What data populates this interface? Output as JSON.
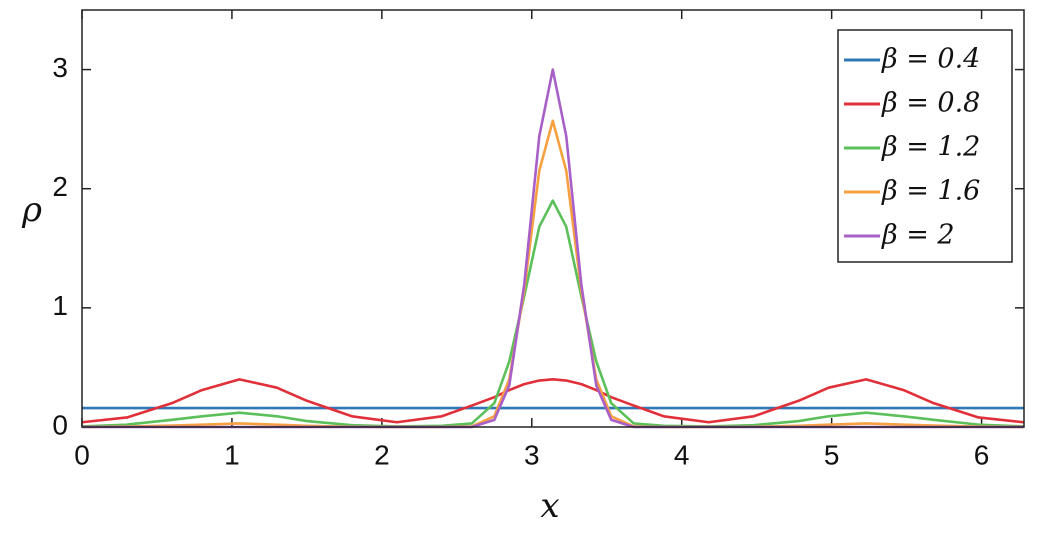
{
  "chart_data": {
    "type": "line",
    "xlabel": "x",
    "ylabel": "ρ",
    "x": [
      0,
      0.3,
      0.6,
      0.8,
      1.05,
      1.3,
      1.5,
      1.8,
      2.1,
      2.4,
      2.6,
      2.75,
      2.85,
      2.95,
      3.05,
      3.14,
      3.23,
      3.33,
      3.43,
      3.53,
      3.68,
      3.88,
      4.18,
      4.48,
      4.78,
      4.98,
      5.23,
      5.48,
      5.68,
      5.98,
      6.28
    ],
    "series": [
      {
        "name": "β = 0.4",
        "color": "#2f78b5",
        "values": [
          0.159,
          0.159,
          0.159,
          0.159,
          0.159,
          0.159,
          0.159,
          0.159,
          0.159,
          0.159,
          0.159,
          0.159,
          0.159,
          0.159,
          0.159,
          0.159,
          0.159,
          0.159,
          0.159,
          0.159,
          0.159,
          0.159,
          0.159,
          0.159,
          0.159,
          0.159,
          0.159,
          0.159,
          0.159,
          0.159,
          0.159
        ]
      },
      {
        "name": "β = 0.8",
        "color": "#e0303a",
        "values": [
          0.04,
          0.08,
          0.2,
          0.31,
          0.4,
          0.33,
          0.22,
          0.09,
          0.04,
          0.09,
          0.18,
          0.25,
          0.31,
          0.36,
          0.39,
          0.4,
          0.39,
          0.36,
          0.31,
          0.25,
          0.18,
          0.09,
          0.04,
          0.09,
          0.22,
          0.33,
          0.4,
          0.31,
          0.2,
          0.08,
          0.04
        ]
      },
      {
        "name": "β = 1.2",
        "color": "#5bbf5a",
        "values": [
          0.005,
          0.02,
          0.06,
          0.09,
          0.12,
          0.09,
          0.05,
          0.015,
          0.005,
          0.01,
          0.03,
          0.2,
          0.55,
          1.1,
          1.68,
          1.9,
          1.68,
          1.1,
          0.55,
          0.2,
          0.03,
          0.01,
          0.005,
          0.015,
          0.05,
          0.09,
          0.12,
          0.09,
          0.06,
          0.02,
          0.005
        ]
      },
      {
        "name": "β = 1.6",
        "color": "#f7a040",
        "values": [
          0,
          0.004,
          0.012,
          0.02,
          0.03,
          0.02,
          0.01,
          0.002,
          0,
          0,
          0.005,
          0.09,
          0.4,
          1.15,
          2.15,
          2.57,
          2.15,
          1.15,
          0.4,
          0.09,
          0.005,
          0,
          0,
          0.002,
          0.01,
          0.02,
          0.03,
          0.02,
          0.012,
          0.004,
          0
        ]
      },
      {
        "name": "β = 2",
        "color": "#a860c8",
        "values": [
          0,
          0,
          0,
          0,
          0,
          0,
          0,
          0,
          0,
          0,
          0,
          0.06,
          0.35,
          1.2,
          2.44,
          3.0,
          2.44,
          1.2,
          0.35,
          0.06,
          0,
          0,
          0,
          0,
          0,
          0,
          0,
          0,
          0,
          0,
          0
        ]
      }
    ],
    "xlim": [
      0,
      6.283
    ],
    "ylim": [
      0,
      3.5
    ],
    "xticks": [
      0,
      1,
      2,
      3,
      4,
      5,
      6
    ],
    "yticks": [
      0,
      1,
      2,
      3
    ],
    "legend": "upper right"
  }
}
